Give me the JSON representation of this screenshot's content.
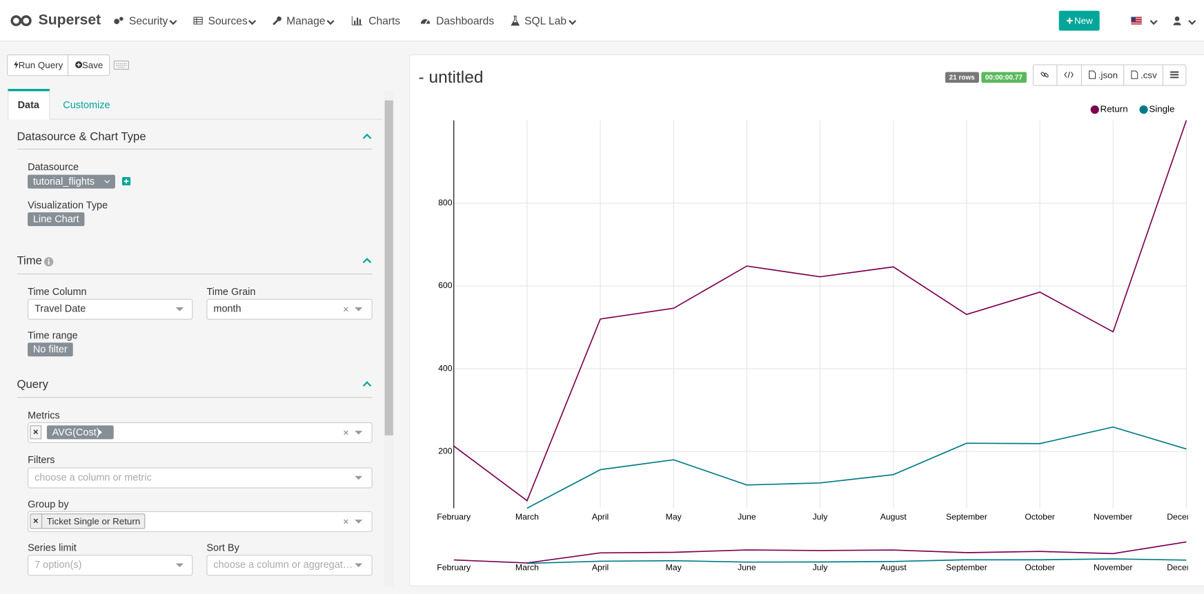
{
  "nav": {
    "brand": "Superset",
    "items": [
      "Security",
      "Sources",
      "Manage",
      "Charts",
      "Dashboards",
      "SQL Lab"
    ],
    "new_button": "New"
  },
  "sidebar": {
    "run_query": "Run Query",
    "save": "Save",
    "tabs": [
      "Data",
      "Customize"
    ],
    "datasource_section": "Datasource & Chart Type",
    "datasource_label": "Datasource",
    "datasource": "tutorial_flights",
    "viz_label": "Visualization Type",
    "viz": "Line Chart",
    "time_section": "Time",
    "time_column_label": "Time Column",
    "time_column": "Travel Date",
    "time_grain_label": "Time Grain",
    "time_grain": "month",
    "time_range_label": "Time range",
    "time_range": "No filter",
    "query_section": "Query",
    "metrics_label": "Metrics",
    "metric": "AVG(Cost)",
    "filters_label": "Filters",
    "filters_placeholder": "choose a column or metric",
    "groupby_label": "Group by",
    "groupby": "Ticket Single or Return",
    "series_limit_label": "Series limit",
    "series_limit_placeholder": "7 option(s)",
    "sort_by_label": "Sort By",
    "sort_by_placeholder": "choose a column or aggregate function"
  },
  "panel": {
    "title": "- untitled",
    "row_count": "21 rows",
    "duration": "00:00:00.77",
    "buttons": [
      ".json",
      ".csv"
    ]
  },
  "chart_data": {
    "type": "line",
    "categories": [
      "February",
      "March",
      "April",
      "May",
      "June",
      "July",
      "August",
      "September",
      "October",
      "November",
      "December"
    ],
    "series": [
      {
        "name": "Return",
        "color": "#7b0051",
        "values": [
          213,
          81,
          520,
          546,
          648,
          622,
          646,
          531,
          585,
          489,
          1000
        ]
      },
      {
        "name": "Single",
        "color": "#007a87",
        "values": [
          null,
          63,
          156,
          180,
          119,
          124,
          144,
          220,
          219,
          259,
          206
        ]
      }
    ],
    "ylim": [
      63,
      1000
    ],
    "yticks": [
      200,
      400,
      600,
      800
    ],
    "grid": true,
    "legend": "top-right"
  }
}
